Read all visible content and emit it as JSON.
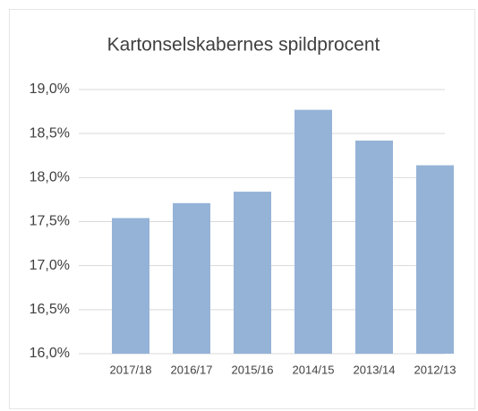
{
  "chart_data": {
    "type": "bar",
    "title": "Kartonselskabernes spildprocent",
    "categories": [
      "2017/18",
      "2016/17",
      "2015/16",
      "2014/15",
      "2013/14",
      "2012/13"
    ],
    "values": [
      17.54,
      17.71,
      17.84,
      18.77,
      18.42,
      18.14
    ],
    "color": "#95b3d7",
    "ylim": [
      16,
      19
    ],
    "yticks": [
      {
        "value": 16,
        "label": "16,0%"
      },
      {
        "value": 16.5,
        "label": "16,5%"
      },
      {
        "value": 17,
        "label": "17,0%"
      },
      {
        "value": 17.5,
        "label": "17,5%"
      },
      {
        "value": 18,
        "label": "18,0%"
      },
      {
        "value": 18.5,
        "label": "18,5%"
      },
      {
        "value": 19,
        "label": "19,0%"
      }
    ],
    "grid": true
  }
}
